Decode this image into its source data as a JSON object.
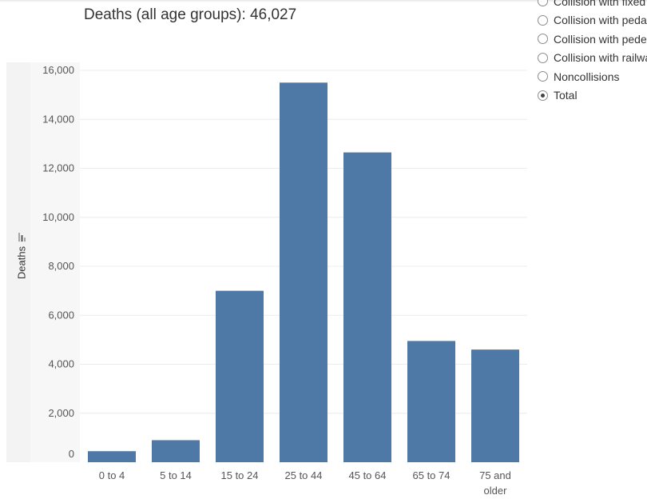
{
  "title": "Deaths (all age groups): 46,027",
  "radio_options": [
    {
      "label": "Collision with fixed object",
      "checked": false
    },
    {
      "label": "Collision with pedalcyclist",
      "checked": false
    },
    {
      "label": "Collision with pedestrian",
      "checked": false
    },
    {
      "label": "Collision with railway train",
      "checked": false
    },
    {
      "label": "Noncollisions",
      "checked": false
    },
    {
      "label": "Total",
      "checked": true
    }
  ],
  "colors": {
    "bar": "#4e79a7",
    "grid": "#ececec"
  },
  "icons": {
    "sort": "sort-descending-icon"
  },
  "chart_data": {
    "type": "bar",
    "title": "Deaths (all age groups): 46,027",
    "xlabel": "",
    "ylabel": "Deaths",
    "categories": [
      "0 to 4",
      "5 to 14",
      "15 to 24",
      "25 to 44",
      "45 to 64",
      "65 to 74",
      "75 and older"
    ],
    "category_lines": [
      [
        "0 to 4"
      ],
      [
        "5 to 14"
      ],
      [
        "15 to 24"
      ],
      [
        "25 to 44"
      ],
      [
        "45 to 64"
      ],
      [
        "65 to 74"
      ],
      [
        "75 and",
        "older"
      ]
    ],
    "values": [
      450,
      900,
      7000,
      15500,
      12650,
      4950,
      4600
    ],
    "ylim": [
      0,
      16000
    ],
    "yticks": [
      0,
      2000,
      4000,
      6000,
      8000,
      10000,
      12000,
      14000,
      16000
    ],
    "ytick_labels": [
      "0",
      "2,000",
      "4,000",
      "6,000",
      "8,000",
      "10,000",
      "12,000",
      "14,000",
      "16,000"
    ],
    "grid": true,
    "legend": "none"
  }
}
